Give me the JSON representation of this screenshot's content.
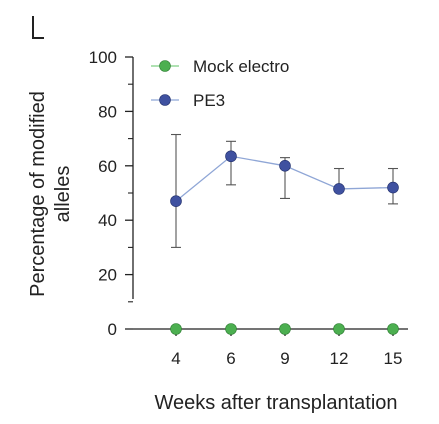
{
  "chart_data": {
    "type": "line",
    "title": "",
    "xlabel": "Weeks after transplantation",
    "ylabel": [
      "Percentage of modified",
      "alleles"
    ],
    "categories": [
      "4",
      "6",
      "9",
      "12",
      "15"
    ],
    "ylim": [
      0,
      100
    ],
    "yticks": [
      "0",
      "20",
      "40",
      "60",
      "80",
      "100"
    ],
    "grid": false,
    "legend_position": "top-right",
    "series": [
      {
        "name": "Mock electro",
        "values": [
          0,
          0,
          0,
          0,
          0
        ],
        "color": "#4caf50",
        "line": false
      },
      {
        "name": "PE3",
        "values": [
          47,
          63.5,
          60,
          51.5,
          52
        ],
        "err_low": [
          30,
          53,
          48,
          51.5,
          46
        ],
        "err_high": [
          71.5,
          69,
          63,
          59,
          59
        ],
        "color": "#3f51a0",
        "line_color": "#8fa6d6",
        "line": true
      }
    ]
  }
}
